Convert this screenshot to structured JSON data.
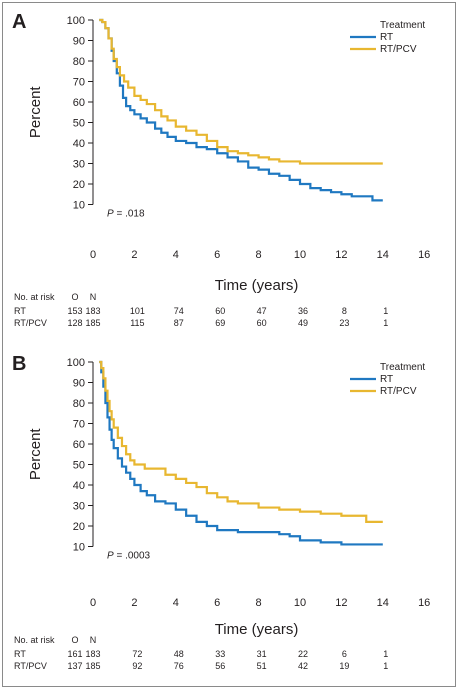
{
  "colors": {
    "rt": "#1f78c1",
    "rtpcv": "#e8b730",
    "axis": "#231f20"
  },
  "chart_data": [
    {
      "type": "line",
      "panel": "A",
      "ylabel": "Percent",
      "xlabel": "Time (years)",
      "xlim": [
        0,
        16
      ],
      "ylim": [
        0,
        100
      ],
      "yticks": [
        "10",
        "20",
        "30",
        "40",
        "50",
        "60",
        "70",
        "80",
        "90",
        "100"
      ],
      "xticks": [
        "0",
        "2",
        "4",
        "6",
        "8",
        "10",
        "12",
        "14",
        "16"
      ],
      "legend_title": "Treatment",
      "legend_position": "top-right",
      "p_label": "P",
      "p_value": "= .018",
      "series": [
        {
          "name": "RT",
          "color_key": "rt",
          "x": [
            0.3,
            0.45,
            0.6,
            0.75,
            0.9,
            1.0,
            1.15,
            1.3,
            1.45,
            1.6,
            1.8,
            2.0,
            2.3,
            2.6,
            3.0,
            3.3,
            3.6,
            4.0,
            4.5,
            5.0,
            5.5,
            6.0,
            6.5,
            7.0,
            7.5,
            8.0,
            8.5,
            9.0,
            9.5,
            10.0,
            10.5,
            11.0,
            11.5,
            12.0,
            12.5,
            13.0,
            13.5,
            14.0
          ],
          "y": [
            100,
            99,
            96,
            91,
            85,
            80,
            74,
            68,
            62,
            58,
            56,
            54,
            52,
            50,
            47,
            45,
            43,
            41,
            40,
            38,
            37,
            35,
            33,
            31,
            28,
            27,
            25,
            24,
            22,
            20,
            18,
            17,
            16,
            15,
            14,
            14,
            12,
            12
          ]
        },
        {
          "name": "RT/PCV",
          "color_key": "rtpcv",
          "x": [
            0.3,
            0.45,
            0.6,
            0.75,
            0.9,
            1.0,
            1.15,
            1.3,
            1.5,
            1.7,
            2.0,
            2.3,
            2.6,
            3.0,
            3.3,
            3.6,
            4.0,
            4.5,
            5.0,
            5.5,
            6.0,
            6.5,
            7.0,
            7.5,
            8.0,
            8.5,
            9.0,
            9.5,
            10.0,
            11.0,
            12.0,
            13.0,
            14.0
          ],
          "y": [
            100,
            99,
            96,
            91,
            86,
            81,
            77,
            73,
            70,
            67,
            63,
            61,
            59,
            56,
            53,
            51,
            48,
            46,
            44,
            41,
            38,
            36,
            35,
            34,
            33,
            32,
            31,
            31,
            30,
            30,
            30,
            30,
            30
          ]
        }
      ],
      "risk_table": {
        "header": [
          "No. at risk",
          "O",
          "N"
        ],
        "rows": [
          {
            "label": "RT",
            "O": "153",
            "N": "183",
            "values": [
              "101",
              "74",
              "60",
              "47",
              "36",
              "8",
              "1"
            ]
          },
          {
            "label": "RT/PCV",
            "O": "128",
            "N": "185",
            "values": [
              "115",
              "87",
              "69",
              "60",
              "49",
              "23",
              "1"
            ]
          }
        ]
      }
    },
    {
      "type": "line",
      "panel": "B",
      "ylabel": "Percent",
      "xlabel": "Time (years)",
      "xlim": [
        0,
        16
      ],
      "ylim": [
        0,
        100
      ],
      "yticks": [
        "10",
        "20",
        "30",
        "40",
        "50",
        "60",
        "70",
        "80",
        "90",
        "100"
      ],
      "xticks": [
        "0",
        "2",
        "4",
        "6",
        "8",
        "10",
        "12",
        "14",
        "16"
      ],
      "legend_title": "Treatment",
      "legend_position": "top-right",
      "p_label": "P",
      "p_value": "= .0003",
      "series": [
        {
          "name": "RT",
          "color_key": "rt",
          "x": [
            0.3,
            0.4,
            0.5,
            0.6,
            0.7,
            0.8,
            0.9,
            1.0,
            1.2,
            1.4,
            1.6,
            1.8,
            2.0,
            2.3,
            2.6,
            3.0,
            3.5,
            4.0,
            4.5,
            5.0,
            5.5,
            6.0,
            7.0,
            8.0,
            9.0,
            9.5,
            10.0,
            11.0,
            12.0,
            13.0,
            14.0
          ],
          "y": [
            100,
            95,
            88,
            80,
            73,
            67,
            62,
            58,
            53,
            49,
            46,
            43,
            40,
            37,
            35,
            32,
            31,
            28,
            25,
            22,
            20,
            18,
            17,
            17,
            16,
            15,
            13,
            12,
            11,
            11,
            11
          ]
        },
        {
          "name": "RT/PCV",
          "color_key": "rtpcv",
          "x": [
            0.3,
            0.4,
            0.5,
            0.6,
            0.7,
            0.8,
            0.9,
            1.0,
            1.2,
            1.4,
            1.6,
            1.8,
            2.0,
            2.5,
            3.0,
            3.5,
            4.0,
            4.5,
            5.0,
            5.5,
            6.0,
            6.5,
            7.0,
            8.0,
            9.0,
            10.0,
            11.0,
            12.0,
            13.0,
            13.2,
            14.0
          ],
          "y": [
            100,
            97,
            92,
            86,
            81,
            76,
            72,
            68,
            63,
            59,
            55,
            52,
            50,
            48,
            48,
            45,
            43,
            41,
            39,
            36,
            34,
            32,
            31,
            29,
            28,
            27,
            26,
            25,
            25,
            22,
            22
          ]
        }
      ],
      "risk_table": {
        "header": [
          "No. at risk",
          "O",
          "N"
        ],
        "rows": [
          {
            "label": "RT",
            "O": "161",
            "N": "183",
            "values": [
              "72",
              "48",
              "33",
              "31",
              "22",
              "6",
              "1"
            ]
          },
          {
            "label": "RT/PCV",
            "O": "137",
            "N": "185",
            "values": [
              "92",
              "76",
              "56",
              "51",
              "42",
              "19",
              "1"
            ]
          }
        ]
      }
    }
  ]
}
